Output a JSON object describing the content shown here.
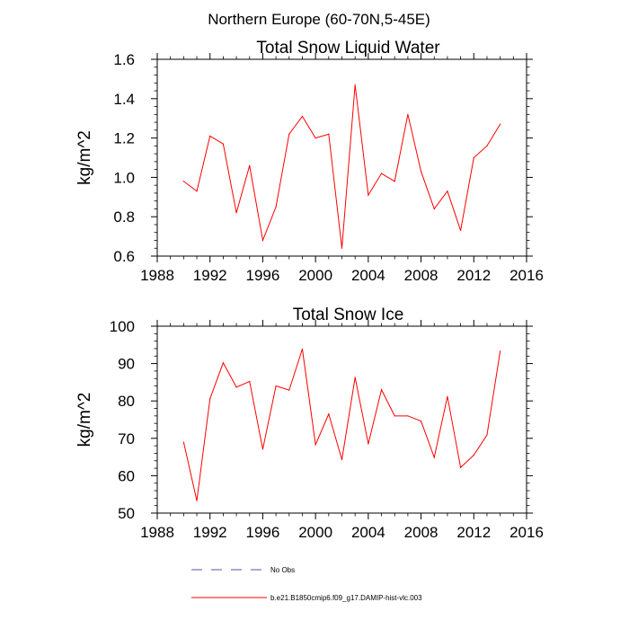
{
  "figure": {
    "suptitle": "Northern Europe (60-70N,5-45E)"
  },
  "chart_data": [
    {
      "type": "line",
      "title": "Total Snow Liquid Water",
      "xlabel": "",
      "ylabel": "kg/m^2",
      "xlim": [
        1988,
        2016
      ],
      "ylim": [
        0.6,
        1.6
      ],
      "xticks": [
        1988,
        1992,
        1996,
        2000,
        2004,
        2008,
        2012,
        2016
      ],
      "xtick_labels": [
        "1988",
        "1992",
        "1996",
        "2000",
        "2004",
        "2008",
        "2012",
        "2016"
      ],
      "yticks": [
        0.6,
        0.8,
        1.0,
        1.2,
        1.4,
        1.6
      ],
      "ytick_labels": [
        "0.6",
        "0.8",
        "1.0",
        "1.2",
        "1.4",
        "1.6"
      ],
      "grid": false,
      "x": [
        1990,
        1991,
        1992,
        1993,
        1994,
        1995,
        1996,
        1997,
        1998,
        1999,
        2000,
        2001,
        2002,
        2003,
        2004,
        2005,
        2006,
        2007,
        2008,
        2009,
        2010,
        2011,
        2012,
        2013,
        2014
      ],
      "series": [
        {
          "name": "b.e21.B1850cmip6.f09_g17.DAMIP-hist-vlc.003",
          "color": "#ff0000",
          "values": [
            0.98,
            0.93,
            1.21,
            1.17,
            0.82,
            1.06,
            0.68,
            0.85,
            1.22,
            1.31,
            1.2,
            1.22,
            0.64,
            1.47,
            0.91,
            1.02,
            0.98,
            1.32,
            1.03,
            0.84,
            0.93,
            0.73,
            1.1,
            1.16,
            1.27
          ]
        }
      ]
    },
    {
      "type": "line",
      "title": "Total Snow Ice",
      "xlabel": "",
      "ylabel": "kg/m^2",
      "xlim": [
        1988,
        2016
      ],
      "ylim": [
        50,
        100
      ],
      "xticks": [
        1988,
        1992,
        1996,
        2000,
        2004,
        2008,
        2012,
        2016
      ],
      "xtick_labels": [
        "1988",
        "1992",
        "1996",
        "2000",
        "2004",
        "2008",
        "2012",
        "2016"
      ],
      "yticks": [
        50,
        60,
        70,
        80,
        90,
        100
      ],
      "ytick_labels": [
        "50",
        "60",
        "70",
        "80",
        "90",
        "100"
      ],
      "grid": false,
      "x": [
        1990,
        1991,
        1992,
        1993,
        1994,
        1995,
        1996,
        1997,
        1998,
        1999,
        2000,
        2001,
        2002,
        2003,
        2004,
        2005,
        2006,
        2007,
        2008,
        2009,
        2010,
        2011,
        2012,
        2013,
        2014
      ],
      "series": [
        {
          "name": "b.e21.B1850cmip6.f09_g17.DAMIP-hist-vlc.003",
          "color": "#ff0000",
          "values": [
            69.0,
            53.3,
            80.6,
            90.2,
            83.7,
            85.2,
            67.1,
            84.0,
            82.9,
            93.9,
            68.3,
            76.5,
            64.3,
            86.3,
            68.5,
            83.0,
            76.0,
            76.0,
            74.6,
            64.9,
            81.2,
            62.2,
            65.5,
            70.9,
            93.3
          ]
        }
      ]
    }
  ],
  "legend": {
    "placement": "bottom",
    "entries": [
      {
        "label": "No Obs",
        "color": "#5555aa",
        "style": "dashed"
      },
      {
        "label": "b.e21.B1850cmip6.f09_g17.DAMIP-hist-vlc.003",
        "color": "#ff0000",
        "style": "solid"
      }
    ]
  }
}
